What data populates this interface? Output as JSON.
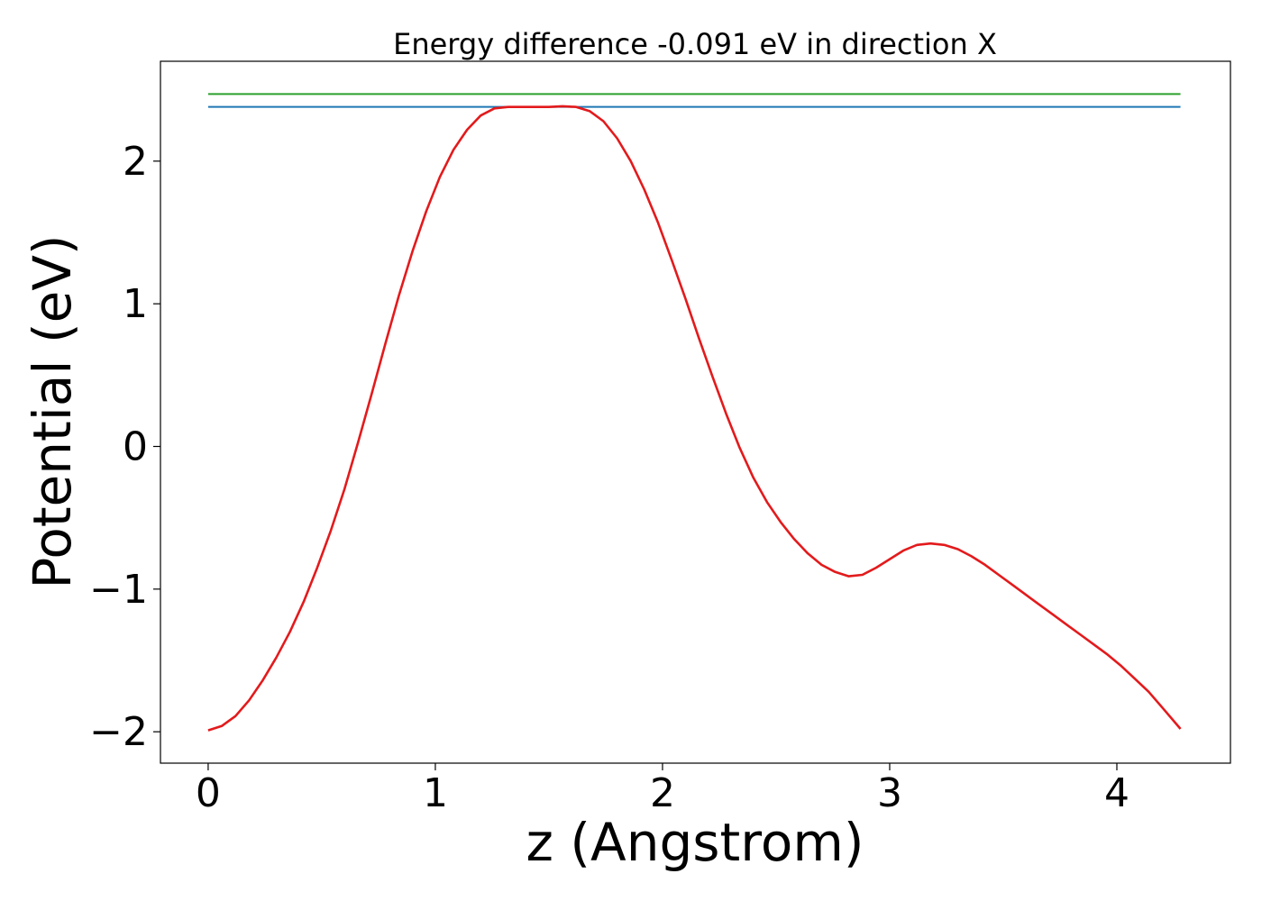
{
  "chart_data": {
    "type": "line",
    "title": "Energy difference -0.091 eV in direction X",
    "xlabel": "z (Angstrom)",
    "ylabel": "Potential (eV)",
    "xlim": [
      -0.21,
      4.5
    ],
    "ylim": [
      -2.22,
      2.7
    ],
    "xticks": [
      0,
      1,
      2,
      3,
      4
    ],
    "xtick_labels": [
      "0",
      "1",
      "2",
      "3",
      "4"
    ],
    "yticks": [
      -2,
      -1,
      0,
      1,
      2
    ],
    "ytick_labels": [
      "−2",
      "−1",
      "0",
      "1",
      "2"
    ],
    "grid": false,
    "hlines": [
      {
        "y": 2.47,
        "x": [
          0,
          4.28
        ],
        "color": "#2ca02c"
      },
      {
        "y": 2.38,
        "x": [
          0,
          4.28
        ],
        "color": "#1f77b4"
      }
    ],
    "series": [
      {
        "color": "#e31a1c",
        "x": [
          0,
          0.06,
          0.12,
          0.18,
          0.24,
          0.3,
          0.36,
          0.42,
          0.48,
          0.54,
          0.6,
          0.66,
          0.72,
          0.78,
          0.84,
          0.9,
          0.96,
          1.02,
          1.08,
          1.14,
          1.2,
          1.26,
          1.32,
          1.38,
          1.44,
          1.5,
          1.56,
          1.62,
          1.68,
          1.74,
          1.8,
          1.86,
          1.92,
          1.98,
          2.04,
          2.1,
          2.16,
          2.22,
          2.28,
          2.34,
          2.4,
          2.46,
          2.52,
          2.58,
          2.64,
          2.7,
          2.76,
          2.82,
          2.88,
          2.94,
          3.0,
          3.06,
          3.12,
          3.18,
          3.24,
          3.3,
          3.36,
          3.42,
          3.48,
          3.54,
          3.6,
          3.66,
          3.72,
          3.78,
          3.84,
          3.9,
          3.96,
          4.02,
          4.08,
          4.14,
          4.2,
          4.28
        ],
        "y": [
          -1.99,
          -1.96,
          -1.89,
          -1.78,
          -1.64,
          -1.48,
          -1.3,
          -1.09,
          -0.85,
          -0.59,
          -0.3,
          0.03,
          0.37,
          0.72,
          1.06,
          1.37,
          1.65,
          1.89,
          2.08,
          2.22,
          2.32,
          2.37,
          2.38,
          2.38,
          2.38,
          2.38,
          2.385,
          2.38,
          2.35,
          2.28,
          2.16,
          2.0,
          1.8,
          1.57,
          1.31,
          1.04,
          0.76,
          0.49,
          0.23,
          -0.01,
          -0.22,
          -0.39,
          -0.53,
          -0.65,
          -0.75,
          -0.83,
          -0.88,
          -0.91,
          -0.9,
          -0.85,
          -0.79,
          -0.73,
          -0.69,
          -0.68,
          -0.69,
          -0.72,
          -0.77,
          -0.83,
          -0.9,
          -0.97,
          -1.04,
          -1.11,
          -1.18,
          -1.25,
          -1.32,
          -1.39,
          -1.46,
          -1.54,
          -1.63,
          -1.72,
          -1.83,
          -1.98
        ]
      }
    ]
  }
}
